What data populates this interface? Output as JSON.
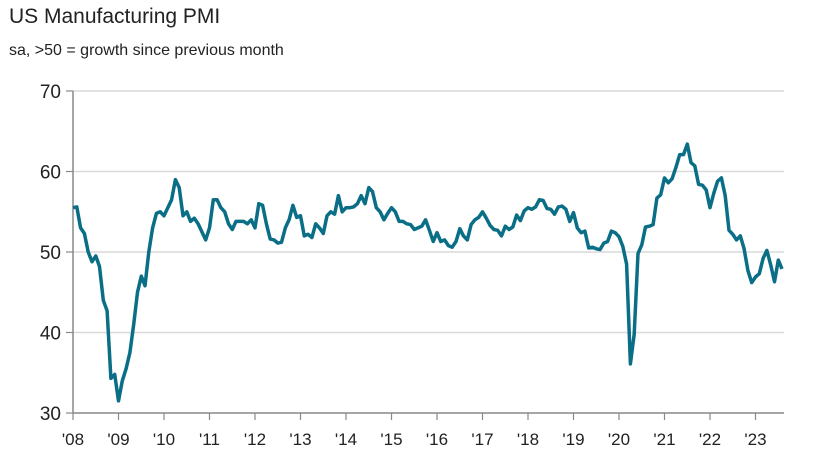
{
  "chart_data": {
    "type": "line",
    "title": "US Manufacturing PMI",
    "subtitle": "sa, >50 = growth since previous month",
    "ylim": [
      30,
      70
    ],
    "yticks": [
      30,
      40,
      50,
      60,
      70
    ],
    "xtick_labels": [
      "'08",
      "'09",
      "'10",
      "'11",
      "'12",
      "'13",
      "'14",
      "'15",
      "'16",
      "'17",
      "'18",
      "'19",
      "'20",
      "'21",
      "'22",
      "'23"
    ],
    "x_start": "2008-01",
    "x_frequency": "monthly",
    "grid": true,
    "line_color": "#0a6e86",
    "values": [
      55.5,
      55.6,
      53,
      52.3,
      50,
      48.8,
      49.5,
      48.2,
      44,
      42.7,
      34.3,
      34.8,
      31.5,
      34,
      35.5,
      37.5,
      41,
      45,
      47,
      45.8,
      50,
      53,
      54.8,
      55,
      54.5,
      55.5,
      56.5,
      59,
      58,
      54.5,
      55,
      53.8,
      54.2,
      53.5,
      52.5,
      51.5,
      53,
      56.5,
      56.5,
      55.5,
      55,
      53.5,
      52.8,
      53.8,
      53.8,
      53.8,
      53.5,
      54,
      53,
      56,
      55.8,
      53.5,
      51.6,
      51.5,
      51.1,
      51.2,
      53,
      54,
      55.8,
      54.3,
      54.5,
      52,
      52.2,
      51.8,
      53.5,
      53,
      52.3,
      54.5,
      55,
      54.7,
      57,
      55,
      55.5,
      55.5,
      55.6,
      56,
      57,
      56,
      58,
      57.5,
      55.5,
      55,
      54,
      54.8,
      55.5,
      55,
      53.8,
      53.8,
      53.5,
      53.4,
      52.8,
      53,
      53.2,
      54,
      52.7,
      51.3,
      52.4,
      51.3,
      51.5,
      50.8,
      50.6,
      51.3,
      52.9,
      52,
      51.5,
      53.4,
      54,
      54.3,
      55,
      54.2,
      53.3,
      52.8,
      52.7,
      52,
      53.2,
      52.8,
      53.1,
      54.6,
      53.9,
      55.1,
      55.5,
      55.3,
      55.6,
      56.5,
      56.4,
      55.4,
      55.3,
      54.7,
      55.6,
      55.7,
      55.3,
      53.8,
      54.9,
      53,
      52.4,
      52.6,
      50.5,
      50.6,
      50.4,
      50.3,
      51.1,
      51.3,
      52.6,
      52.4,
      51.9,
      50.7,
      48.5,
      36.1,
      39.8,
      49.8,
      50.9,
      53.1,
      53.2,
      53.4,
      56.7,
      57.1,
      59.2,
      58.6,
      59.1,
      60.5,
      62.1,
      62.1,
      63.4,
      61.1,
      60.7,
      58.4,
      58.3,
      57.7,
      55.5,
      57.3,
      58.8,
      59.2,
      57,
      52.7,
      52.2,
      51.5,
      52,
      50.4,
      47.7,
      46.2,
      46.9,
      47.3,
      49.2,
      50.2,
      48.4,
      46.3,
      49,
      47.9
    ]
  }
}
